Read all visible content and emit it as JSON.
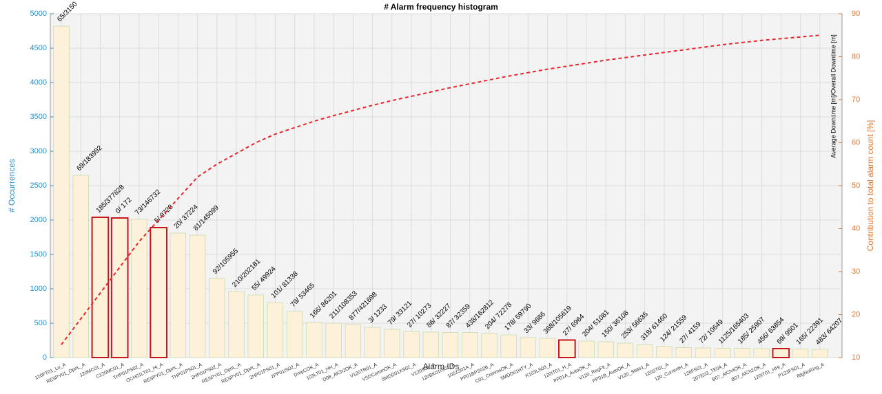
{
  "chart_data": {
    "type": "pareto",
    "title": "#  Alarm frequency histogram",
    "xlabel": "Alarm IDs",
    "ylabel": "# Occurrences",
    "y2label": "Contribution to total alarm count [%]",
    "y2label_inner": "Average Downtime [m]/Overall Downtime [m]",
    "categories": [
      "120FT01_Lo_A",
      "RESPY01_OpnL_A",
      "120MC01_A",
      "C120MC01_A",
      "THP01PS02_A",
      "OCH01LT01_Hi_A",
      "RESPY01_OpnL_A",
      "THP01PS01_A",
      "2HP01PS02_A",
      "RESPY01_OpnL_A",
      "RESPY01_OpnL_A",
      "2HP01PS01_A",
      "2PP01IS02_A",
      "DmpCOK_A",
      "103LT01_HH_A",
      "D08_AlCh2OK_A",
      "V120TR01_A",
      "VSDCommOK_A",
      "5MDD01XS02_A",
      "V120S01_A",
      "120BK01IS01_A",
      "102ZS01A_A",
      "PP01BPS02B_A",
      "C01_CommsOK_A",
      "5MDD01HTY_A",
      "K103LS03_A",
      "120IT01_H_A",
      "PP01A_AutoOK_A",
      "V120_RegFlt_A",
      "PP01B_AutoOK_A",
      "V120_Stats1_A",
      "120ST01_A",
      "120_CurrentH_A",
      "126FS01_A",
      "20TE03_TE04_A",
      "B07_AlCh4OK_A",
      "B07_AlCh2OK_A",
      "120IT01_HHi_A",
      "P123FS01_A",
      "RtgNoRing_A"
    ],
    "values": [
      4820,
      2650,
      2040,
      2030,
      2010,
      1890,
      1810,
      1780,
      1150,
      960,
      910,
      800,
      670,
      510,
      500,
      480,
      440,
      410,
      375,
      370,
      365,
      365,
      350,
      330,
      290,
      280,
      255,
      240,
      230,
      210,
      185,
      165,
      145,
      140,
      135,
      135,
      130,
      130,
      125,
      120
    ],
    "bar_labels": [
      "65/3150",
      "69/183992",
      "185/377828",
      "0/  172",
      "73/146732",
      "5/  9728",
      "20/  37224",
      "81/145099",
      "92/105955",
      "210/202181",
      "55/  49924",
      "101/  81338",
      "79/  53465",
      "166/  86201",
      "211/108353",
      "877/421698",
      "3/  1233",
      "79/  33121",
      "27/  10273",
      "86/  32227",
      "87/  32359",
      "438/162812",
      "204/  72278",
      "178/  59790",
      "33/  9686",
      "368/105619",
      "27/  6964",
      "204/  51081",
      "150/  36108",
      "253/  56635",
      "318/  61460",
      "124/  21559",
      "27/  4159",
      "72/  10649",
      "1125/165403",
      "185/  25907",
      "456/  63854",
      "69/  9501",
      "165/  22391",
      "483/  64207"
    ],
    "cumulative_values": [
      13,
      19,
      25,
      31,
      37,
      42,
      47,
      52,
      55,
      57.5,
      60,
      62,
      63.5,
      65,
      66.3,
      67.5,
      68.7,
      69.8,
      70.8,
      71.8,
      72.8,
      73.7,
      74.6,
      75.5,
      76.3,
      77.1,
      77.8,
      78.5,
      79.2,
      79.8,
      80.4,
      81,
      81.6,
      82.2,
      82.8,
      83.3,
      83.8,
      84.2,
      84.6,
      85
    ],
    "bar_color": "#fdf1da",
    "line_color": "#e8242a",
    "highlighted": [
      2,
      3,
      5,
      26,
      37
    ],
    "highlight_color": "#c8161d",
    "ylim": [
      0,
      5000
    ],
    "yticks": [
      0,
      500,
      1000,
      1500,
      2000,
      2500,
      3000,
      3500,
      4000,
      4500,
      5000
    ],
    "y2lim": [
      10,
      90
    ],
    "y2ticks": [
      10,
      20,
      30,
      40,
      50,
      60,
      70,
      80,
      90
    ],
    "grid": true
  }
}
